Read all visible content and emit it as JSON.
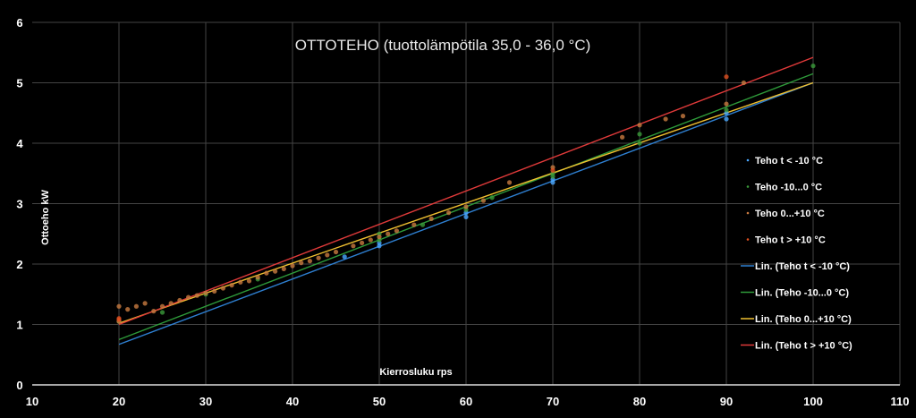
{
  "chart_data": {
    "type": "scatter",
    "title": "OTTOTEHO (tuottolämpötila 35,0 - 36,0 °C)",
    "xlabel": "Kierrosluku rps",
    "ylabel": "Ottoeho kW",
    "xlim": [
      10,
      110
    ],
    "ylim": [
      0,
      6
    ],
    "x_ticks": [
      "10",
      "20",
      "30",
      "40",
      "50",
      "60",
      "70",
      "80",
      "90",
      "100",
      "110"
    ],
    "y_ticks": [
      "0",
      "1",
      "2",
      "3",
      "4",
      "5",
      "6"
    ],
    "grid": true,
    "legend_position": "right",
    "background": "#000000",
    "series": [
      {
        "name": "Teho t < -10 °C",
        "color": "#4aa8ff",
        "points": [
          [
            46,
            2.12
          ],
          [
            50,
            2.3
          ],
          [
            50,
            2.35
          ],
          [
            60,
            2.78
          ],
          [
            60,
            2.85
          ],
          [
            70,
            3.35
          ],
          [
            70,
            3.4
          ],
          [
            90,
            4.4
          ],
          [
            90,
            4.5
          ]
        ]
      },
      {
        "name": "Teho -10...0 °C",
        "color": "#3a9a3a",
        "points": [
          [
            20,
            1.05
          ],
          [
            25,
            1.2
          ],
          [
            30,
            1.5
          ],
          [
            36,
            1.75
          ],
          [
            50,
            2.4
          ],
          [
            50,
            2.5
          ],
          [
            55,
            2.65
          ],
          [
            60,
            2.9
          ],
          [
            63,
            3.1
          ],
          [
            70,
            3.45
          ],
          [
            70,
            3.5
          ],
          [
            80,
            4.0
          ],
          [
            80,
            4.15
          ],
          [
            90,
            4.55
          ],
          [
            100,
            5.28
          ]
        ]
      },
      {
        "name": "Teho 0...+10 °C",
        "color": "#c87a40",
        "points": [
          [
            20,
            1.05
          ],
          [
            20,
            1.3
          ],
          [
            21,
            1.25
          ],
          [
            22,
            1.3
          ],
          [
            23,
            1.35
          ],
          [
            24,
            1.22
          ],
          [
            25,
            1.3
          ],
          [
            26,
            1.35
          ],
          [
            27,
            1.4
          ],
          [
            28,
            1.45
          ],
          [
            29,
            1.48
          ],
          [
            30,
            1.52
          ],
          [
            31,
            1.55
          ],
          [
            32,
            1.6
          ],
          [
            33,
            1.65
          ],
          [
            34,
            1.7
          ],
          [
            35,
            1.72
          ],
          [
            36,
            1.78
          ],
          [
            37,
            1.85
          ],
          [
            38,
            1.88
          ],
          [
            39,
            1.92
          ],
          [
            40,
            1.97
          ],
          [
            41,
            2.02
          ],
          [
            42,
            2.05
          ],
          [
            43,
            2.1
          ],
          [
            44,
            2.15
          ],
          [
            45,
            2.2
          ],
          [
            47,
            2.3
          ],
          [
            48,
            2.35
          ],
          [
            49,
            2.4
          ],
          [
            50,
            2.45
          ],
          [
            51,
            2.5
          ],
          [
            52,
            2.55
          ],
          [
            54,
            2.65
          ],
          [
            56,
            2.75
          ],
          [
            58,
            2.85
          ],
          [
            60,
            2.95
          ],
          [
            62,
            3.05
          ],
          [
            65,
            3.35
          ],
          [
            70,
            3.6
          ],
          [
            78,
            4.1
          ],
          [
            80,
            4.3
          ],
          [
            83,
            4.4
          ],
          [
            85,
            4.45
          ],
          [
            90,
            4.65
          ],
          [
            92,
            5.0
          ]
        ]
      },
      {
        "name": "Teho t > +10 °C",
        "color": "#e05020",
        "points": [
          [
            20,
            1.08
          ],
          [
            20,
            1.1
          ],
          [
            70,
            3.55
          ],
          [
            90,
            5.1
          ]
        ]
      }
    ],
    "trendlines": [
      {
        "name": "Lin. (Teho t < -10 °C)",
        "color": "#2e7fd0",
        "from": [
          20,
          0.67
        ],
        "to": [
          100,
          5.0
        ]
      },
      {
        "name": "Lin. (Teho -10...0 °C)",
        "color": "#2e9a3a",
        "from": [
          20,
          0.75
        ],
        "to": [
          100,
          5.15
        ]
      },
      {
        "name": "Lin. (Teho 0...+10 °C)",
        "color": "#f0c030",
        "from": [
          20,
          1.02
        ],
        "to": [
          100,
          5.0
        ]
      },
      {
        "name": "Lin. (Teho t > +10 °C)",
        "color": "#e03a3a",
        "from": [
          20,
          1.0
        ],
        "to": [
          100,
          5.42
        ]
      }
    ]
  }
}
